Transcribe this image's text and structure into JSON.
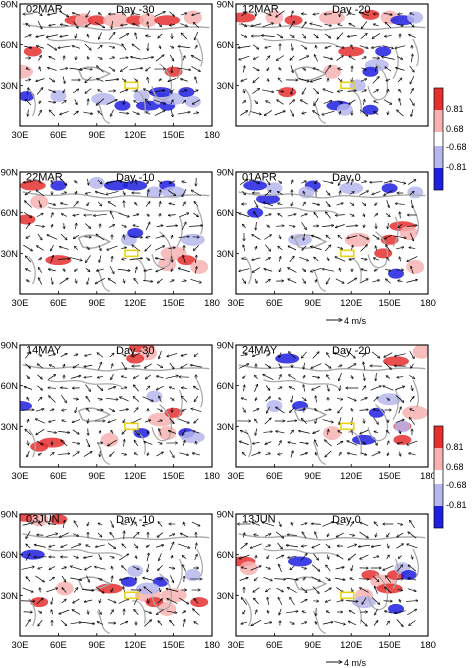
{
  "chart_data": [
    {
      "type": "vector-map",
      "title": "02MAR",
      "day_label": "Day -30",
      "x_ticks": [
        "30E",
        "60E",
        "90E",
        "120E",
        "150E",
        "180"
      ],
      "y_ticks": [
        "90N",
        "60N",
        "30N"
      ],
      "positive_regions": [
        [
          75,
          78
        ],
        [
          80,
          78
        ],
        [
          90,
          78
        ],
        [
          105,
          78
        ],
        [
          120,
          78
        ],
        [
          130,
          78
        ],
        [
          145,
          78
        ],
        [
          165,
          80
        ],
        [
          40,
          55
        ],
        [
          30,
          40
        ],
        [
          150,
          40
        ]
      ],
      "negative_regions": [
        [
          130,
          15
        ],
        [
          140,
          20
        ],
        [
          145,
          15
        ],
        [
          150,
          20
        ],
        [
          160,
          25
        ],
        [
          165,
          18
        ],
        [
          140,
          25
        ],
        [
          125,
          22
        ],
        [
          110,
          15
        ],
        [
          95,
          20
        ],
        [
          35,
          22
        ],
        [
          60,
          22
        ]
      ]
    },
    {
      "type": "vector-map",
      "title": "12MAR",
      "day_label": "Day -20",
      "x_ticks": [],
      "y_ticks": [
        "90N",
        "60N",
        "30N"
      ],
      "positive_regions": [
        [
          35,
          80
        ],
        [
          60,
          80
        ],
        [
          75,
          78
        ],
        [
          105,
          80
        ],
        [
          135,
          82
        ],
        [
          150,
          80
        ],
        [
          120,
          55
        ],
        [
          105,
          40
        ],
        [
          70,
          25
        ]
      ],
      "negative_regions": [
        [
          160,
          78
        ],
        [
          170,
          80
        ],
        [
          145,
          55
        ],
        [
          140,
          45
        ],
        [
          135,
          40
        ],
        [
          125,
          30
        ],
        [
          110,
          15
        ],
        [
          115,
          12
        ],
        [
          135,
          12
        ]
      ]
    },
    {
      "type": "vector-map",
      "title": "22MAR",
      "day_label": "Day -10",
      "x_ticks": [
        "30E",
        "60E",
        "90E",
        "120E",
        "150E",
        "180"
      ],
      "y_ticks": [
        "90N",
        "60N",
        "30N"
      ],
      "positive_regions": [
        [
          40,
          80
        ],
        [
          45,
          68
        ],
        [
          35,
          55
        ],
        [
          150,
          30
        ],
        [
          160,
          25
        ],
        [
          145,
          22
        ],
        [
          60,
          25
        ],
        [
          170,
          20
        ]
      ],
      "negative_regions": [
        [
          120,
          80
        ],
        [
          135,
          75
        ],
        [
          145,
          80
        ],
        [
          150,
          75
        ],
        [
          60,
          80
        ],
        [
          90,
          82
        ],
        [
          105,
          80
        ],
        [
          115,
          40
        ],
        [
          120,
          45
        ],
        [
          165,
          40
        ]
      ]
    },
    {
      "type": "vector-map",
      "title": "01APR",
      "day_label": "Day 0",
      "x_ticks": [
        "30E",
        "60E",
        "90E",
        "120E",
        "150E",
        "180"
      ],
      "y_ticks": [
        "90N",
        "60N",
        "30N"
      ],
      "positive_regions": [
        [
          160,
          50
        ],
        [
          165,
          45
        ],
        [
          150,
          40
        ],
        [
          125,
          40
        ],
        [
          145,
          30
        ],
        [
          170,
          20
        ]
      ],
      "negative_regions": [
        [
          45,
          80
        ],
        [
          60,
          78
        ],
        [
          90,
          80
        ],
        [
          120,
          78
        ],
        [
          150,
          78
        ],
        [
          170,
          75
        ],
        [
          55,
          70
        ],
        [
          85,
          75
        ],
        [
          45,
          60
        ],
        [
          80,
          40
        ],
        [
          155,
          15
        ]
      ]
    },
    {
      "type": "vector-map",
      "title": "14MAY",
      "day_label": "Day -30",
      "x_ticks": [
        "30E",
        "60E",
        "90E",
        "120E",
        "150E",
        "180"
      ],
      "y_ticks": [
        "90N",
        "60N",
        "30N"
      ],
      "positive_regions": [
        [
          125,
          88
        ],
        [
          130,
          84
        ],
        [
          120,
          80
        ],
        [
          140,
          35
        ],
        [
          150,
          40
        ],
        [
          145,
          25
        ],
        [
          55,
          18
        ],
        [
          100,
          20
        ],
        [
          45,
          15
        ]
      ],
      "negative_regions": [
        [
          30,
          45
        ],
        [
          135,
          52
        ],
        [
          160,
          25
        ],
        [
          165,
          22
        ],
        [
          125,
          25
        ]
      ]
    },
    {
      "type": "vector-map",
      "title": "24MAY",
      "day_label": "Day -20",
      "x_ticks": [
        "30E",
        "60E",
        "90E",
        "120E",
        "150E",
        "180"
      ],
      "y_ticks": [
        "90N",
        "60N",
        "30N"
      ],
      "positive_regions": [
        [
          155,
          78
        ],
        [
          175,
          85
        ],
        [
          160,
          30
        ],
        [
          170,
          40
        ],
        [
          160,
          20
        ],
        [
          105,
          25
        ]
      ],
      "negative_regions": [
        [
          70,
          80
        ],
        [
          60,
          45
        ],
        [
          80,
          45
        ],
        [
          150,
          50
        ],
        [
          140,
          40
        ],
        [
          160,
          30
        ],
        [
          130,
          20
        ]
      ]
    },
    {
      "type": "vector-map",
      "title": "03JUN",
      "day_label": "Day -10",
      "x_ticks": [
        "30E",
        "60E",
        "90E",
        "120E",
        "150E",
        "180"
      ],
      "y_ticks": [
        "90N",
        "60N",
        "30N"
      ],
      "positive_regions": [
        [
          35,
          88
        ],
        [
          45,
          86
        ],
        [
          60,
          86
        ],
        [
          130,
          30
        ],
        [
          135,
          25
        ],
        [
          145,
          20
        ],
        [
          100,
          35
        ],
        [
          65,
          35
        ],
        [
          45,
          25
        ],
        [
          150,
          30
        ],
        [
          170,
          25
        ]
      ],
      "negative_regions": [
        [
          40,
          60
        ],
        [
          120,
          48
        ],
        [
          140,
          40
        ],
        [
          130,
          35
        ],
        [
          115,
          40
        ],
        [
          165,
          45
        ]
      ]
    },
    {
      "type": "vector-map",
      "title": "13JUN",
      "day_label": "Day 0",
      "x_ticks": [
        "30E",
        "60E",
        "90E",
        "120E",
        "150E",
        "180"
      ],
      "y_ticks": [
        "90N",
        "60N",
        "30N"
      ],
      "positive_regions": [
        [
          35,
          55
        ],
        [
          40,
          50
        ],
        [
          135,
          45
        ],
        [
          145,
          40
        ],
        [
          155,
          45
        ],
        [
          130,
          30
        ],
        [
          150,
          35
        ]
      ],
      "negative_regions": [
        [
          80,
          55
        ],
        [
          160,
          50
        ],
        [
          165,
          45
        ],
        [
          130,
          25
        ],
        [
          155,
          20
        ]
      ]
    }
  ],
  "scale_ref": [
    {
      "label": "4 m/s"
    },
    {
      "label": "4 m/s"
    }
  ],
  "legends": [
    {
      "labels": [
        "0.81",
        "0.68",
        "-0.68",
        "-0.81"
      ]
    },
    {
      "labels": [
        "0.81",
        "0.68",
        "-0.68",
        "-0.81"
      ]
    }
  ],
  "colors": {
    "strong_pos": "#e53030",
    "weak_pos": "#f7b1b1",
    "weak_neg": "#b7b7ee",
    "strong_neg": "#1f1fe0",
    "coast": "#a8a8a8",
    "box": "#e8d218",
    "arrow": "#000000"
  }
}
